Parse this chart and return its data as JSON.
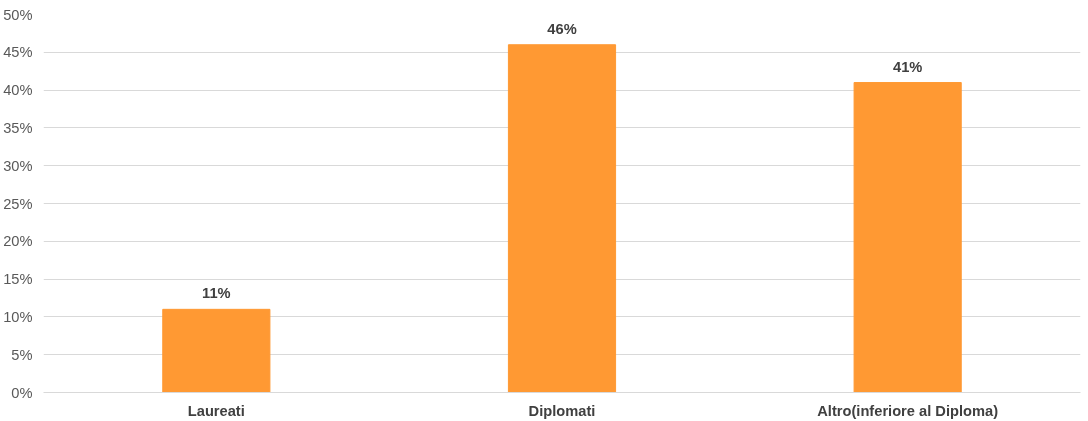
{
  "chart_data": {
    "type": "bar",
    "categories": [
      "Laureati",
      "Diplomati",
      "Altro(inferiore al Diploma)"
    ],
    "values": [
      11,
      46,
      41
    ],
    "value_labels": [
      "11%",
      "46%",
      "41%"
    ],
    "color": "#ff9933",
    "ylim": [
      0,
      50
    ],
    "yticks": [
      {
        "value": 0,
        "label": "0%"
      },
      {
        "value": 5,
        "label": "5%"
      },
      {
        "value": 10,
        "label": "10%"
      },
      {
        "value": 15,
        "label": "15%"
      },
      {
        "value": 20,
        "label": "20%"
      },
      {
        "value": 25,
        "label": "25%"
      },
      {
        "value": 30,
        "label": "30%"
      },
      {
        "value": 35,
        "label": "35%"
      },
      {
        "value": 40,
        "label": "40%"
      },
      {
        "value": 45,
        "label": "45%"
      },
      {
        "value": 50,
        "label": "50%"
      }
    ],
    "grid": "y"
  }
}
